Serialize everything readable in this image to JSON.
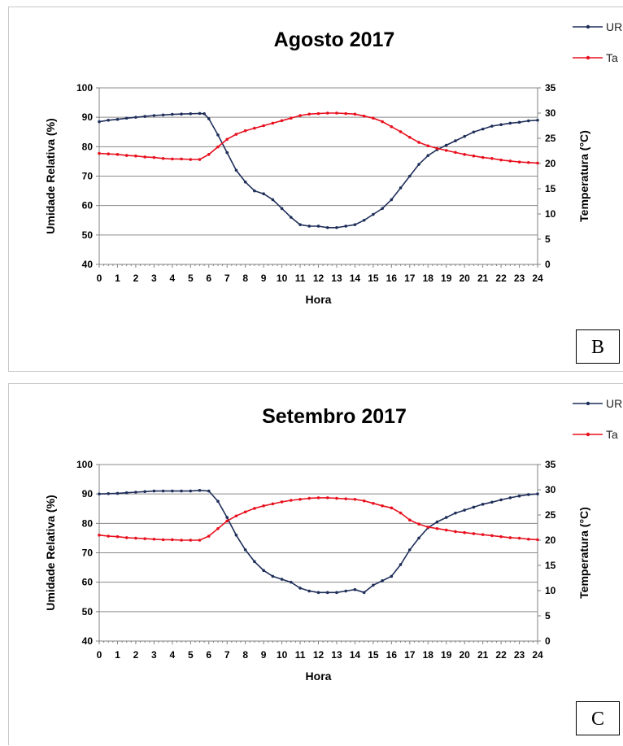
{
  "chart_data": [
    {
      "type": "line",
      "panel_label": "B",
      "title": "Agosto 2017",
      "xlabel": "Hora",
      "ylabel_left": "Umidade Relativa (%)",
      "ylabel_right": "Temperatura (°C)",
      "xlim": [
        0,
        24
      ],
      "ylim_left": [
        40,
        100
      ],
      "ylim_right": [
        0,
        35
      ],
      "x_ticks": [
        0,
        1,
        2,
        3,
        4,
        5,
        6,
        7,
        8,
        9,
        10,
        11,
        12,
        13,
        14,
        15,
        16,
        17,
        18,
        19,
        20,
        21,
        22,
        23,
        24
      ],
      "y_ticks_left": [
        40,
        50,
        60,
        70,
        80,
        90,
        100
      ],
      "y_ticks_right": [
        0,
        5,
        10,
        15,
        20,
        25,
        30,
        35
      ],
      "grid": true,
      "legend_position": "top-right",
      "series": [
        {
          "name": "UR",
          "axis": "left",
          "color": "#1f2f5a",
          "x": [
            0,
            0.5,
            1,
            1.5,
            2,
            2.5,
            3,
            3.5,
            4,
            4.5,
            5,
            5.5,
            5.75,
            6,
            6.5,
            7,
            7.5,
            8,
            8.5,
            9,
            9.5,
            10,
            10.5,
            11,
            11.5,
            12,
            12.5,
            13,
            13.5,
            14,
            14.5,
            15,
            15.5,
            16,
            16.5,
            17,
            17.5,
            18,
            18.5,
            19,
            19.5,
            20,
            20.5,
            21,
            21.5,
            22,
            22.5,
            23,
            23.5,
            24
          ],
          "y": [
            88.5,
            89,
            89.3,
            89.7,
            90,
            90.3,
            90.6,
            90.8,
            91,
            91.1,
            91.2,
            91.3,
            91.2,
            89.5,
            84,
            78,
            72,
            68,
            65,
            64,
            62,
            59,
            56,
            53.5,
            53,
            53,
            52.5,
            52.5,
            53,
            53.5,
            55,
            57,
            59,
            62,
            66,
            70,
            74,
            77,
            79,
            80.5,
            82,
            83.5,
            85,
            86,
            87,
            87.5,
            88,
            88.3,
            88.8,
            89
          ]
        },
        {
          "name": "Ta",
          "axis": "right",
          "color": "#e8101e",
          "x": [
            0,
            0.5,
            1,
            1.5,
            2,
            2.5,
            3,
            3.5,
            4,
            4.5,
            5,
            5.5,
            6,
            6.5,
            7,
            7.5,
            8,
            8.5,
            9,
            9.5,
            10,
            10.5,
            11,
            11.5,
            12,
            12.5,
            13,
            13.5,
            14,
            14.5,
            15,
            15.5,
            16,
            16.5,
            17,
            17.5,
            18,
            18.5,
            19,
            19.5,
            20,
            20.5,
            21,
            21.5,
            22,
            22.5,
            23,
            23.5,
            24
          ],
          "y": [
            22,
            21.9,
            21.8,
            21.6,
            21.5,
            21.3,
            21.2,
            21,
            20.9,
            20.9,
            20.8,
            20.8,
            21.8,
            23.3,
            24.8,
            25.8,
            26.5,
            27,
            27.5,
            28,
            28.5,
            29,
            29.5,
            29.8,
            29.9,
            30,
            30,
            29.9,
            29.8,
            29.4,
            29,
            28.3,
            27.3,
            26.3,
            25.2,
            24.2,
            23.5,
            23,
            22.6,
            22.2,
            21.8,
            21.5,
            21.2,
            21,
            20.7,
            20.5,
            20.3,
            20.2,
            20.1
          ]
        }
      ]
    },
    {
      "type": "line",
      "panel_label": "C",
      "title": "Setembro 2017",
      "xlabel": "Hora",
      "ylabel_left": "Umidade Relativa (%)",
      "ylabel_right": "Temperatura (°C)",
      "xlim": [
        0,
        24
      ],
      "ylim_left": [
        40,
        100
      ],
      "ylim_right": [
        0,
        35
      ],
      "x_ticks": [
        0,
        1,
        2,
        3,
        4,
        5,
        6,
        7,
        8,
        9,
        10,
        11,
        12,
        13,
        14,
        15,
        16,
        17,
        18,
        19,
        20,
        21,
        22,
        23,
        24
      ],
      "y_ticks_left": [
        40,
        50,
        60,
        70,
        80,
        90,
        100
      ],
      "y_ticks_right": [
        0,
        5,
        10,
        15,
        20,
        25,
        30,
        35
      ],
      "grid": true,
      "legend_position": "top-right",
      "series": [
        {
          "name": "UR",
          "axis": "left",
          "color": "#1f2f5a",
          "x": [
            0,
            0.5,
            1,
            1.5,
            2,
            2.5,
            3,
            3.5,
            4,
            4.5,
            5,
            5.5,
            6,
            6.5,
            7,
            7.5,
            8,
            8.5,
            9,
            9.5,
            10,
            10.5,
            11,
            11.5,
            12,
            12.5,
            13,
            13.5,
            14,
            14.5,
            15,
            15.5,
            16,
            16.5,
            17,
            17.5,
            18,
            18.5,
            19,
            19.5,
            20,
            20.5,
            21,
            21.5,
            22,
            22.5,
            23,
            23.5,
            24
          ],
          "y": [
            90,
            90.1,
            90.2,
            90.4,
            90.6,
            90.8,
            91,
            91,
            91,
            91,
            91,
            91.2,
            91,
            87.5,
            82,
            76,
            71,
            67,
            64,
            62,
            61,
            60,
            58,
            57,
            56.5,
            56.5,
            56.5,
            57,
            57.5,
            56.5,
            59,
            60.5,
            62,
            66,
            71,
            75,
            78.5,
            80.5,
            82,
            83.5,
            84.5,
            85.5,
            86.5,
            87.2,
            88,
            88.7,
            89.3,
            89.8,
            90
          ]
        },
        {
          "name": "Ta",
          "axis": "right",
          "color": "#e8101e",
          "x": [
            0,
            0.5,
            1,
            1.5,
            2,
            2.5,
            3,
            3.5,
            4,
            4.5,
            5,
            5.5,
            6,
            6.5,
            7,
            7.5,
            8,
            8.5,
            9,
            9.5,
            10,
            10.5,
            11,
            11.5,
            12,
            12.5,
            13,
            13.5,
            14,
            14.5,
            15,
            15.5,
            16,
            16.5,
            17,
            17.5,
            18,
            18.5,
            19,
            19.5,
            20,
            20.5,
            21,
            21.5,
            22,
            22.5,
            23,
            23.5,
            24
          ],
          "y": [
            21,
            20.8,
            20.7,
            20.5,
            20.4,
            20.3,
            20.2,
            20.1,
            20.1,
            20,
            20,
            20,
            20.8,
            22.3,
            23.8,
            24.8,
            25.6,
            26.3,
            26.8,
            27.2,
            27.6,
            27.9,
            28.1,
            28.3,
            28.4,
            28.4,
            28.3,
            28.2,
            28.1,
            27.8,
            27.3,
            26.8,
            26.4,
            25.4,
            24,
            23.2,
            22.6,
            22.3,
            22,
            21.7,
            21.5,
            21.3,
            21.1,
            20.9,
            20.7,
            20.5,
            20.4,
            20.2,
            20.1
          ]
        }
      ]
    }
  ]
}
